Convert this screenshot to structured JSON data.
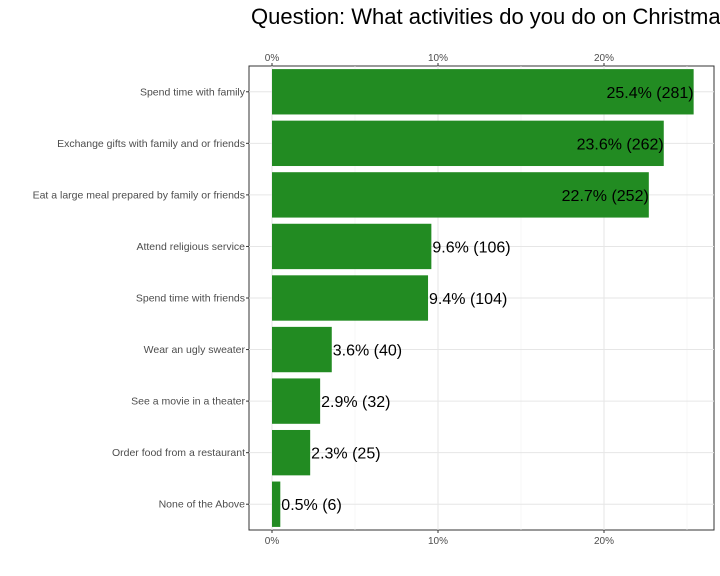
{
  "chart_data": {
    "type": "bar",
    "orientation": "horizontal",
    "title": "Question: What activities do you do on Christmas",
    "xlabel": "",
    "ylabel": "",
    "xlim": [
      0,
      0.26
    ],
    "x_ticks": [
      0,
      0.1,
      0.2
    ],
    "x_tick_labels": [
      "0%",
      "10%",
      "20%"
    ],
    "grid": true,
    "bar_color": "#228b22",
    "categories": [
      "Spend time with family",
      "Exchange gifts with family and or friends",
      "Eat a large meal prepared by family or friends",
      "Attend religious service",
      "Spend time with friends",
      "Wear an ugly sweater",
      "See a movie in a theater",
      "Order food from a restaurant",
      "None of the Above"
    ],
    "values": [
      0.254,
      0.236,
      0.227,
      0.096,
      0.094,
      0.036,
      0.029,
      0.023,
      0.005
    ],
    "counts": [
      281,
      262,
      252,
      106,
      104,
      40,
      32,
      25,
      6
    ],
    "data_labels": [
      "25.4% (281)",
      "23.6% (262)",
      "22.7% (252)",
      "9.6% (106)",
      "9.4% (104)",
      "3.6% (40)",
      "2.9% (32)",
      "2.3% (25)",
      "0.5% (6)"
    ]
  }
}
